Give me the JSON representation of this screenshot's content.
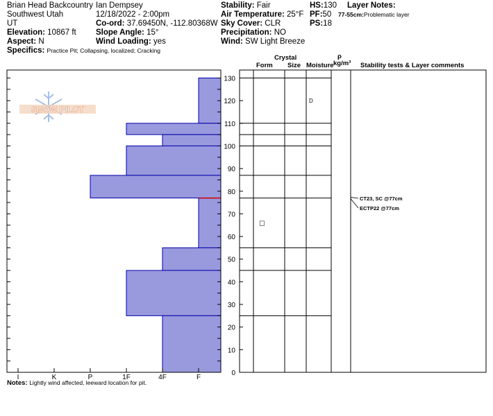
{
  "header": {
    "location": "Brian Head Backcountry",
    "region": "Southwest Utah",
    "state": "UT",
    "elevation_label": "Elevation:",
    "elevation": "10867 ft",
    "aspect_label": "Aspect:",
    "aspect": "N",
    "specifics_label": "Specifics:",
    "specifics": "Practice Pit; Collapsing, localized; Cracking",
    "observer": "Ian Dempsey",
    "datetime": "12/18/2022 - 2:00pm",
    "coord_label": "Co-ord:",
    "coord": "37.69450N, -112.80368W",
    "slope_label": "Slope Angle:",
    "slope": "15°",
    "wind_loading_label": "Wind Loading:",
    "wind_loading": "yes",
    "stability_label": "Stability:",
    "stability": "Fair",
    "air_temp_label": "Air Temperature:",
    "air_temp": "25°F",
    "sky_label": "Sky Cover:",
    "sky": "CLR",
    "precip_label": "Precipitation:",
    "precip": "NO",
    "wind_label": "Wind:",
    "wind": "SW Light Breeze",
    "hs_label": "HS:",
    "hs": "130",
    "pf_label": "PF:",
    "pf": "50",
    "ps_label": "PS:",
    "ps": "18",
    "layer_notes_label": "Layer Notes:",
    "layer_note_depth": "77-55cm:",
    "layer_note_text": "Problematic layer"
  },
  "logo_text": "SNOW PILOT",
  "notes_label": "Notes:",
  "notes": "Lightly wind affected, leeward location for pit.",
  "columns": {
    "crystal": "Crystal",
    "form": "Form",
    "size": "Size",
    "moisture": "Moisture",
    "rho": "ρ",
    "density": "kg/m³",
    "stability": "Stability tests & Layer comments"
  },
  "colors": {
    "hardness_fill": "#9999dd",
    "hardness_edge": "#0000aa",
    "weak_layer": "#cc0000"
  },
  "chart_data": {
    "type": "snow-profile",
    "y_axis": {
      "min": 0,
      "max": 130,
      "unit": "cm",
      "ticks": [
        0,
        10,
        20,
        30,
        40,
        50,
        60,
        70,
        80,
        90,
        100,
        110,
        120,
        130
      ]
    },
    "hardness_scale": [
      "I",
      "K",
      "P",
      "1F",
      "4F",
      "F"
    ],
    "hardness_profile": [
      {
        "top": 130,
        "bottom": 110,
        "hardness": "F"
      },
      {
        "top": 110,
        "bottom": 105,
        "hardness": "1F"
      },
      {
        "top": 105,
        "bottom": 100,
        "hardness": "4F"
      },
      {
        "top": 100,
        "bottom": 87,
        "hardness": "1F"
      },
      {
        "top": 87,
        "bottom": 77,
        "hardness": "P"
      },
      {
        "top": 77,
        "bottom": 55,
        "hardness": "F"
      },
      {
        "top": 55,
        "bottom": 45,
        "hardness": "4F"
      },
      {
        "top": 45,
        "bottom": 25,
        "hardness": "1F"
      },
      {
        "top": 25,
        "bottom": 0,
        "hardness": "4F"
      }
    ],
    "weak_layer_depth": 77,
    "layer_boundaries": [
      130,
      110,
      105,
      100,
      87,
      77,
      55,
      45,
      25
    ],
    "moisture": [
      {
        "depth": 120,
        "value": "D"
      }
    ],
    "grain_symbols": [
      {
        "depth": 66,
        "symbol": "□"
      }
    ],
    "stability_tests": [
      {
        "depth": 77,
        "text": "CT23, SC @77cm"
      },
      {
        "depth": 77,
        "text": "ECTP22 @77cm"
      }
    ]
  }
}
